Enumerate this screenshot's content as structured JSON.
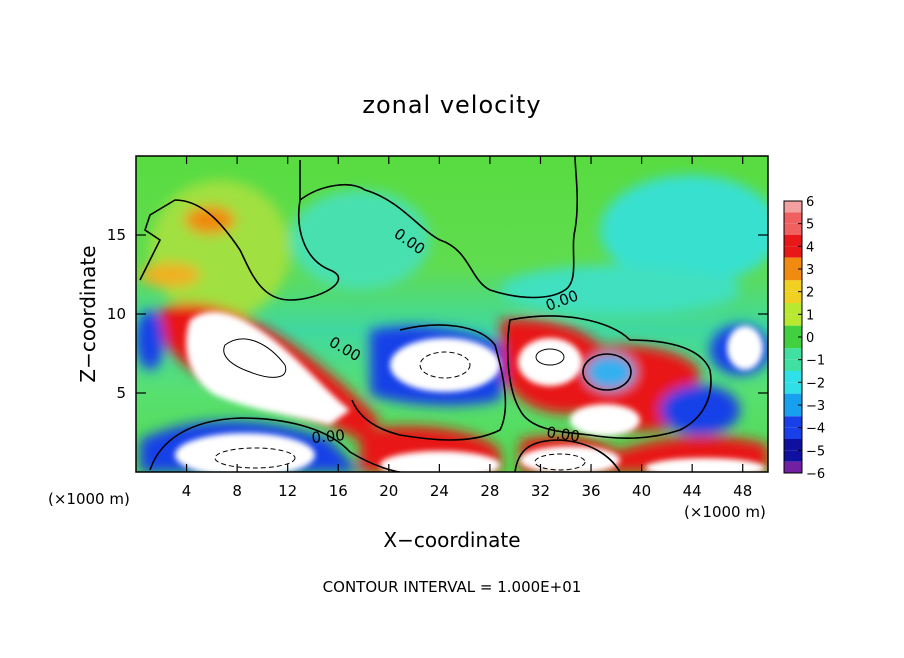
{
  "chart_data": {
    "type": "heatmap",
    "title": "zonal velocity",
    "xlabel": "X−coordinate",
    "ylabel": "Z−coordinate",
    "x_unit_left": "(×1000 m)",
    "x_unit_right": "(×1000 m)",
    "xlim": [
      0,
      50
    ],
    "ylim": [
      0,
      20
    ],
    "x_ticks": [
      {
        "value": 4,
        "label": "4"
      },
      {
        "value": 8,
        "label": "8"
      },
      {
        "value": 12,
        "label": "12"
      },
      {
        "value": 16,
        "label": "16"
      },
      {
        "value": 20,
        "label": "20"
      },
      {
        "value": 24,
        "label": "24"
      },
      {
        "value": 28,
        "label": "28"
      },
      {
        "value": 32,
        "label": "32"
      },
      {
        "value": 36,
        "label": "36"
      },
      {
        "value": 40,
        "label": "40"
      },
      {
        "value": 44,
        "label": "44"
      },
      {
        "value": 48,
        "label": "48"
      }
    ],
    "y_ticks": [
      {
        "value": 5,
        "label": "5"
      },
      {
        "value": 10,
        "label": "10"
      },
      {
        "value": 15,
        "label": "15"
      }
    ],
    "colorbar": {
      "min": -6,
      "max": 6,
      "levels": [
        {
          "value": 6,
          "label": "6",
          "color": "#f2a0a0"
        },
        {
          "value": 5,
          "label": "5",
          "color": "#f06060"
        },
        {
          "value": 4,
          "label": "4",
          "color": "#e81818"
        },
        {
          "value": 3,
          "label": "3",
          "color": "#f08a10"
        },
        {
          "value": 2,
          "label": "2",
          "color": "#f0d020"
        },
        {
          "value": 1,
          "label": "1",
          "color": "#b8e830"
        },
        {
          "value": 0,
          "label": "0",
          "color": "#40d040"
        },
        {
          "value": -1,
          "label": "−1",
          "color": "#40e0a0"
        },
        {
          "value": -2,
          "label": "−2",
          "color": "#30e0e8"
        },
        {
          "value": -3,
          "label": "−3",
          "color": "#18a0f0"
        },
        {
          "value": -4,
          "label": "−4",
          "color": "#1840e8"
        },
        {
          "value": -5,
          "label": "−5",
          "color": "#1010a0"
        },
        {
          "value": -6,
          "label": "−6",
          "color": "#7020a0"
        }
      ]
    },
    "contour_labels": [
      "0.00",
      "0.00",
      "0.00",
      "0.00",
      "0.00"
    ],
    "footer": "CONTOUR INTERVAL = 1.000E+01",
    "saturated_color": "#ffffff"
  }
}
